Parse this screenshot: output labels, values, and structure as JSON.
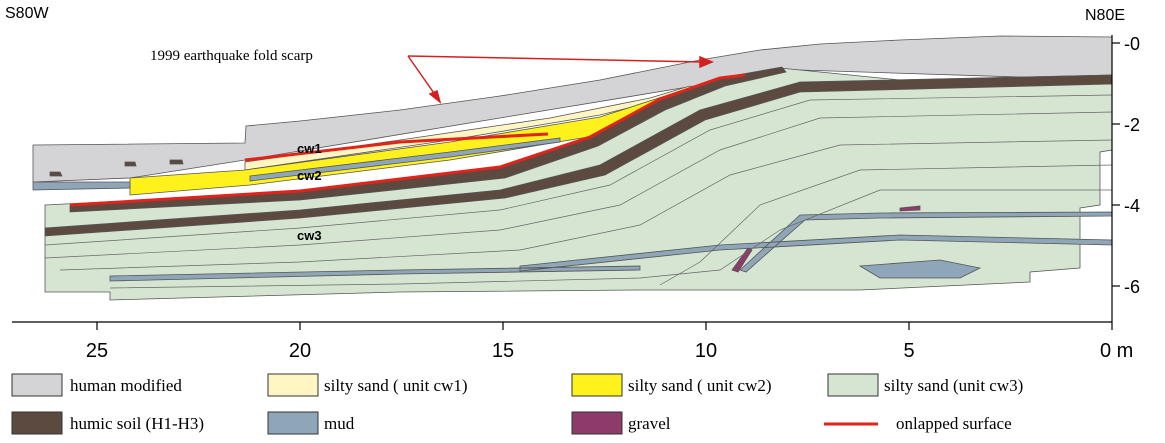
{
  "header": {
    "left": "S80W",
    "right": "N80E"
  },
  "annotation": "1999 earthquake fold scarp",
  "unit_labels": [
    "cw1",
    "cw2",
    "cw3"
  ],
  "x_axis": {
    "ticks": [
      25,
      20,
      15,
      10,
      5,
      {
        "value": 0,
        "label": "0 m"
      }
    ]
  },
  "y_axis": {
    "ticks": [
      {
        "value": 0,
        "label": "-0"
      },
      -2,
      -4,
      -6
    ]
  },
  "legend": [
    "human modified",
    "silty sand ( unit cw1)",
    "silty sand ( unit cw2)",
    "silty sand (unit cw3)",
    "humic soil (H1-H3)",
    "mud",
    "gravel",
    "onlapped surface"
  ]
}
